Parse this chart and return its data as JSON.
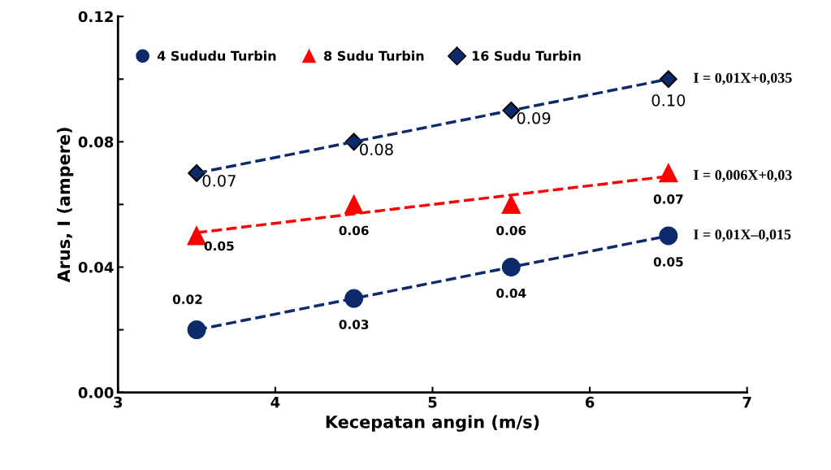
{
  "chart_data": {
    "type": "scatter",
    "xlabel": "Kecepatan angin (m/s)",
    "ylabel": "Arus, I (ampere)",
    "x": [
      3.5,
      4.5,
      5.5,
      6.5
    ],
    "xlim": [
      3,
      7
    ],
    "xticks": [
      3,
      4,
      5,
      6,
      7
    ],
    "ylim": [
      0,
      0.12
    ],
    "yticks": [
      {
        "value": 0,
        "label": "0.00"
      },
      {
        "value": 0.02,
        "label": null
      },
      {
        "value": 0.04,
        "label": "0.04"
      },
      {
        "value": 0.06,
        "label": null
      },
      {
        "value": 0.08,
        "label": "0.08"
      },
      {
        "value": 0.1,
        "label": null
      },
      {
        "value": 0.12,
        "label": "0.12"
      }
    ],
    "grid": false,
    "legend": "top left",
    "series": [
      {
        "name": "4 Sududu Turbin",
        "color": "#0d2a6b",
        "marker": "circle",
        "values": [
          0.02,
          0.03,
          0.04,
          0.05
        ],
        "value_labels": [
          "0.02",
          "0.03",
          "0.04",
          "0.05"
        ]
      },
      {
        "name": "8 Sudu Turbin",
        "color": "#ff0000",
        "marker": "triangle",
        "values": [
          0.05,
          0.06,
          0.06,
          0.07
        ],
        "value_labels": [
          "0.05",
          "0.06",
          "0.06",
          "0.07"
        ]
      },
      {
        "name": "16 Sudu Turbin",
        "color": "#0d2a6b",
        "marker": "diamond",
        "values": [
          0.07,
          0.08,
          0.09,
          0.1
        ],
        "value_labels": [
          "0.07",
          "0.08",
          "0.09",
          "0.10"
        ]
      },
      {
        "type": "line",
        "color": "#0d2a6b",
        "line_style": "dashed",
        "marker": "none",
        "values": [
          0.02,
          0.03,
          0.04,
          0.05
        ]
      },
      {
        "type": "line",
        "color": "#ff0000",
        "line_style": "dashed",
        "marker": "none",
        "values": [
          0.051,
          0.057,
          0.063,
          0.069
        ]
      },
      {
        "type": "line",
        "color": "#0d2a6b",
        "line_style": "dashed",
        "marker": "none",
        "values": [
          0.07,
          0.08,
          0.09,
          0.1
        ]
      }
    ],
    "annotations": [
      "I = 0,01X+0,035",
      "I = 0,006X+0,03",
      "I = 0,01X–0,015"
    ]
  }
}
